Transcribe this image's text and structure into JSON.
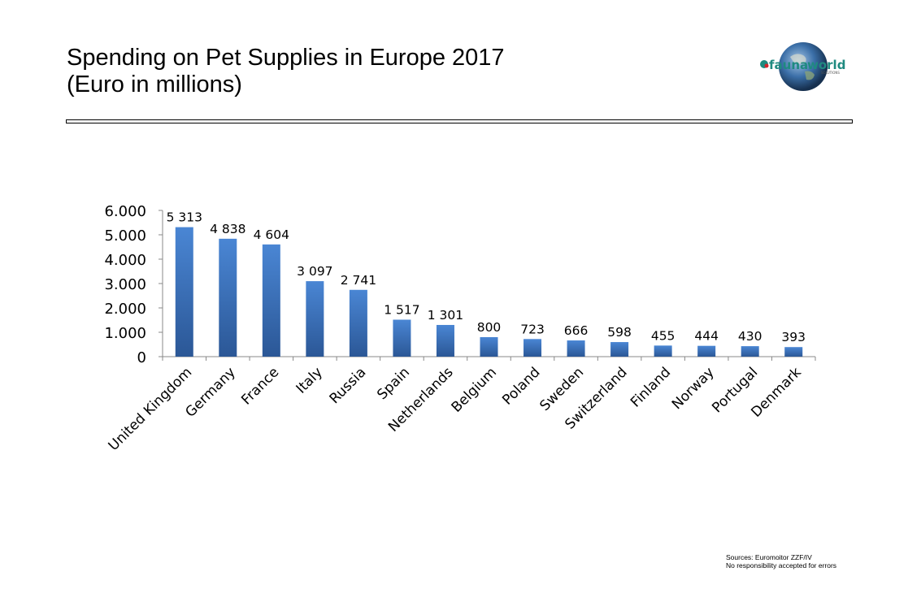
{
  "header": {
    "title_line1": "Spending on Pet Supplies in Europe 2017",
    "title_line2": "(Euro in millions)",
    "logo": {
      "text_main": "fauna",
      "text_accent": "world",
      "tagline": "SOLUTIONS",
      "icon": "globe-icon"
    }
  },
  "footer": {
    "source_line1": "Sources: Euromoitor ZZF/IV",
    "source_line2": "No responsibility accepted for errors"
  },
  "colors": {
    "bar": "#3a72c0",
    "bar_dark": "#2a5595",
    "axis": "#888888"
  },
  "chart_data": {
    "type": "bar",
    "title": "Spending on Pet Supplies in Europe 2017 (Euro in millions)",
    "xlabel": "",
    "ylabel": "",
    "ylim": [
      0,
      6000
    ],
    "yticks": [
      0,
      1000,
      2000,
      3000,
      4000,
      5000,
      6000
    ],
    "ytick_labels": [
      "0",
      "1.000",
      "2.000",
      "3.000",
      "4.000",
      "5.000",
      "6.000"
    ],
    "grid": false,
    "legend": "none",
    "categories": [
      "United Kingdom",
      "Germany",
      "France",
      "Italy",
      "Russia",
      "Spain",
      "Netherlands",
      "Belgium",
      "Poland",
      "Sweden",
      "Switzerland",
      "Finland",
      "Norway",
      "Portugal",
      "Denmark"
    ],
    "values": [
      5313,
      4838,
      4604,
      3097,
      2741,
      1517,
      1301,
      800,
      723,
      666,
      598,
      455,
      444,
      430,
      393
    ],
    "data_labels": [
      "5 313",
      "4 838",
      "4 604",
      "3 097",
      "2 741",
      "1 517",
      "1 301",
      "800",
      "723",
      "666",
      "598",
      "455",
      "444",
      "430",
      "393"
    ]
  }
}
